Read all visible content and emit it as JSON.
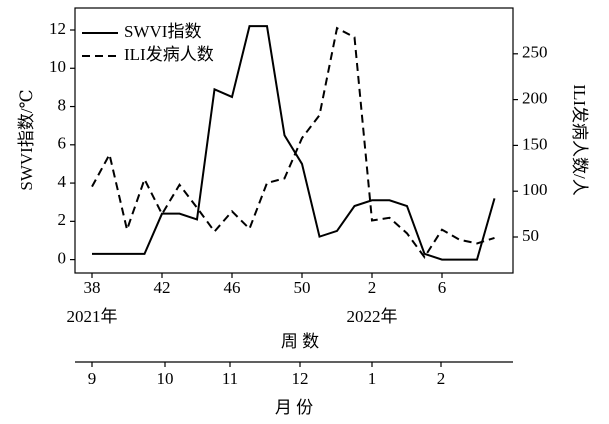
{
  "chart_data": {
    "type": "line",
    "categories": [
      "38",
      null,
      null,
      null,
      "42",
      null,
      null,
      null,
      "46",
      null,
      null,
      null,
      "50",
      null,
      null,
      null,
      "2",
      null,
      null,
      null,
      "6",
      null,
      null,
      null
    ],
    "year_labels": [
      "2021年",
      "2022年"
    ],
    "xlabel": "周 数",
    "ylabel": "SWVI指数/℃",
    "y2label": "ILI发病人数/人",
    "ylim": [
      -0.7,
      13.15
    ],
    "yticks": [
      0,
      2,
      4,
      6,
      8,
      10,
      12
    ],
    "y2lim": [
      10.7,
      300
    ],
    "y2ticks": [
      50,
      100,
      150,
      200,
      250
    ],
    "legend": "upper left",
    "series": [
      {
        "name": "SWVI指数",
        "color": "#000000",
        "dash": "solid",
        "values": [
          0.3,
          0.3,
          0.3,
          0.3,
          2.4,
          2.4,
          2.1,
          8.9,
          8.5,
          12.2,
          12.2,
          6.5,
          5.0,
          1.2,
          1.5,
          2.8,
          3.1,
          3.1,
          2.8,
          0.3,
          0.0,
          0.0,
          0.0,
          3.2
        ]
      },
      {
        "name": "ILI发病人数",
        "color": "#000000",
        "dash": "dashed",
        "axis": "y2",
        "values": [
          105,
          140,
          58,
          113,
          75,
          107,
          82,
          56,
          78,
          59,
          109,
          114,
          158,
          183,
          278,
          268,
          68,
          71,
          54,
          28,
          58,
          47,
          43,
          49
        ]
      }
    ],
    "month_axis": {
      "labels": [
        "9",
        "10",
        "11",
        "12",
        "1",
        "2"
      ],
      "label": "月 份"
    }
  }
}
